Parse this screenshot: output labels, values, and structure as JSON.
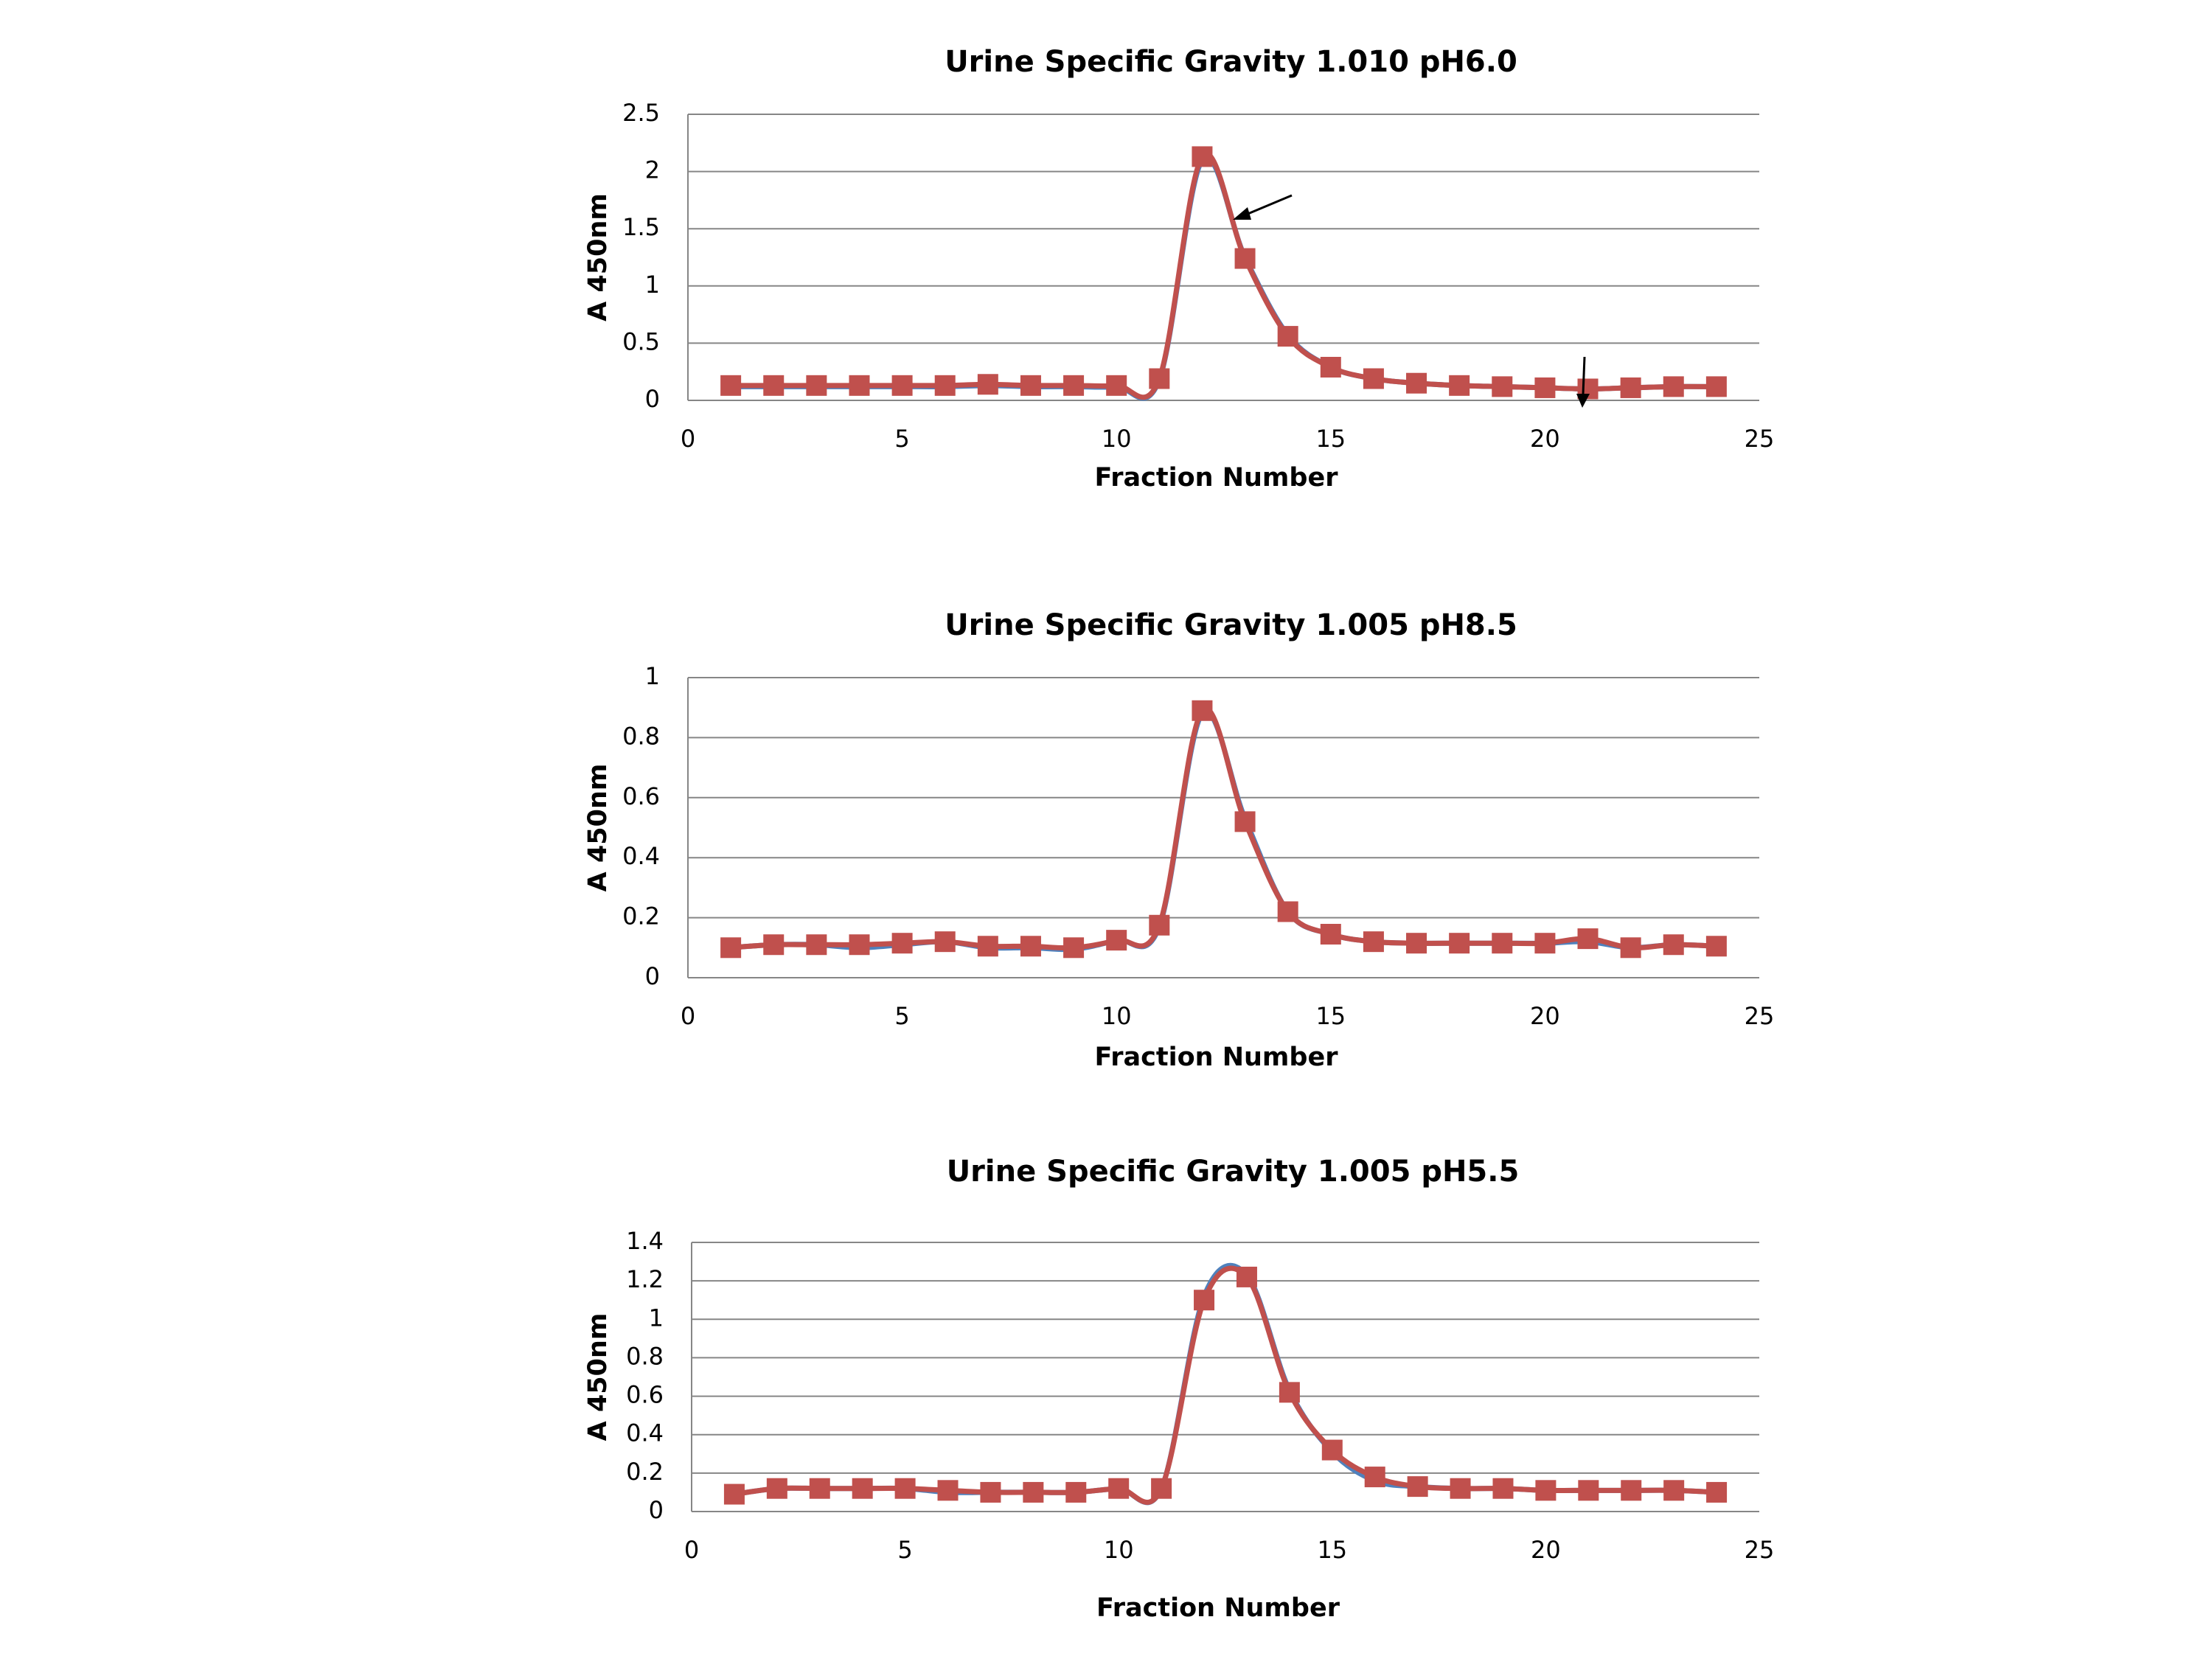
{
  "chart_data": [
    {
      "type": "line",
      "title": "Urine Specific Gravity 1.010 pH6.0",
      "x_label": "Fraction Number",
      "y_label": "A 450nm",
      "x": [
        1,
        2,
        3,
        4,
        5,
        6,
        7,
        8,
        9,
        10,
        11,
        12,
        13,
        14,
        15,
        16,
        17,
        18,
        19,
        20,
        21,
        22,
        23,
        24
      ],
      "series": [
        {
          "color": "#4f81bd",
          "values": [
            0.12,
            0.12,
            0.12,
            0.12,
            0.12,
            0.12,
            0.13,
            0.12,
            0.12,
            0.12,
            0.18,
            2.1,
            1.25,
            0.57,
            0.29,
            0.19,
            0.15,
            0.13,
            0.12,
            0.11,
            0.1,
            0.11,
            0.12,
            0.12
          ]
        },
        {
          "color": "#c0504d",
          "values": [
            0.13,
            0.13,
            0.13,
            0.13,
            0.13,
            0.13,
            0.14,
            0.13,
            0.13,
            0.13,
            0.19,
            2.13,
            1.24,
            0.56,
            0.29,
            0.19,
            0.15,
            0.13,
            0.12,
            0.11,
            0.1,
            0.11,
            0.12,
            0.12
          ]
        }
      ],
      "xlim": [
        0,
        25
      ],
      "ylim": [
        0,
        2.5
      ],
      "xticks": [
        0,
        5,
        10,
        15,
        20,
        25
      ],
      "yticks": [
        0,
        0.5,
        1,
        1.5,
        2,
        2.5
      ],
      "grid": true
    },
    {
      "type": "line",
      "title": "Urine Specific Gravity 1.005 pH8.5",
      "x_label": "Fraction Number",
      "y_label": "A 450nm",
      "x": [
        1,
        2,
        3,
        4,
        5,
        6,
        7,
        8,
        9,
        10,
        11,
        12,
        13,
        14,
        15,
        16,
        17,
        18,
        19,
        20,
        21,
        22,
        23,
        24
      ],
      "series": [
        {
          "color": "#4f81bd",
          "values": [
            0.1,
            0.11,
            0.11,
            0.1,
            0.11,
            0.12,
            0.1,
            0.1,
            0.095,
            0.125,
            0.17,
            0.88,
            0.53,
            0.22,
            0.145,
            0.12,
            0.115,
            0.115,
            0.115,
            0.115,
            0.12,
            0.1,
            0.11,
            0.105
          ]
        },
        {
          "color": "#c0504d",
          "values": [
            0.1,
            0.11,
            0.11,
            0.11,
            0.115,
            0.12,
            0.105,
            0.105,
            0.1,
            0.125,
            0.175,
            0.89,
            0.52,
            0.22,
            0.145,
            0.12,
            0.115,
            0.115,
            0.115,
            0.115,
            0.13,
            0.1,
            0.11,
            0.105
          ]
        }
      ],
      "xlim": [
        0,
        25
      ],
      "ylim": [
        0,
        1
      ],
      "xticks": [
        0,
        5,
        10,
        15,
        20,
        25
      ],
      "yticks": [
        0,
        0.2,
        0.4,
        0.6,
        0.8,
        1
      ],
      "grid": true
    },
    {
      "type": "line",
      "title": "Urine Specific Gravity 1.005 pH5.5",
      "x_label": "Fraction Number",
      "y_label": "A 450nm",
      "x": [
        1,
        2,
        3,
        4,
        5,
        6,
        7,
        8,
        9,
        10,
        11,
        12,
        13,
        14,
        15,
        16,
        17,
        18,
        19,
        20,
        21,
        22,
        23,
        24
      ],
      "series": [
        {
          "color": "#4f81bd",
          "values": [
            0.09,
            0.12,
            0.12,
            0.12,
            0.12,
            0.1,
            0.1,
            0.1,
            0.1,
            0.12,
            0.12,
            1.12,
            1.23,
            0.63,
            0.31,
            0.16,
            0.13,
            0.12,
            0.12,
            0.11,
            0.11,
            0.11,
            0.11,
            0.1
          ]
        },
        {
          "color": "#c0504d",
          "values": [
            0.09,
            0.12,
            0.12,
            0.12,
            0.12,
            0.11,
            0.1,
            0.1,
            0.1,
            0.12,
            0.12,
            1.1,
            1.22,
            0.62,
            0.32,
            0.18,
            0.13,
            0.12,
            0.12,
            0.11,
            0.11,
            0.11,
            0.11,
            0.1
          ]
        }
      ],
      "xlim": [
        0,
        25
      ],
      "ylim": [
        0,
        1.4
      ],
      "xticks": [
        0,
        5,
        10,
        15,
        20,
        25
      ],
      "yticks": [
        0,
        0.2,
        0.4,
        0.6,
        0.8,
        1,
        1.2,
        1.4
      ],
      "grid": true
    }
  ]
}
